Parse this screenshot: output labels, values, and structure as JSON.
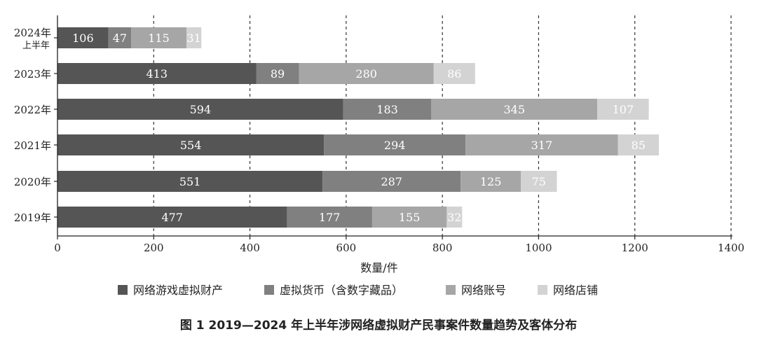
{
  "chart_data": {
    "type": "bar",
    "orientation": "horizontal",
    "stacked": true,
    "categories": [
      "2024年上半年",
      "2023年",
      "2022年",
      "2021年",
      "2020年",
      "2019年"
    ],
    "category_lines": [
      [
        "2024年",
        "上半年"
      ],
      [
        "2023年"
      ],
      [
        "2022年"
      ],
      [
        "2021年"
      ],
      [
        "2020年"
      ],
      [
        "2019年"
      ]
    ],
    "series": [
      {
        "name": "网络游戏虚拟财产",
        "color": "#555555",
        "values": [
          106,
          413,
          594,
          554,
          551,
          477
        ]
      },
      {
        "name": "虚拟货币（含数字藏品）",
        "color": "#808080",
        "values": [
          47,
          89,
          183,
          294,
          287,
          177
        ]
      },
      {
        "name": "网络账号",
        "color": "#a6a6a6",
        "values": [
          115,
          280,
          345,
          317,
          125,
          155
        ]
      },
      {
        "name": "网络店铺",
        "color": "#d3d3d3",
        "values": [
          31,
          86,
          107,
          85,
          75,
          32
        ]
      }
    ],
    "xlabel": "数量/件",
    "ylabel": "",
    "xlim": [
      0,
      1400
    ],
    "xticks": [
      0,
      200,
      400,
      600,
      800,
      1000,
      1200,
      1400
    ],
    "grid": "vertical-dashed",
    "legend_position": "bottom",
    "title": "图 1   2019—2024 年上半年涉网络虚拟财产民事案件数量趋势及客体分布"
  }
}
